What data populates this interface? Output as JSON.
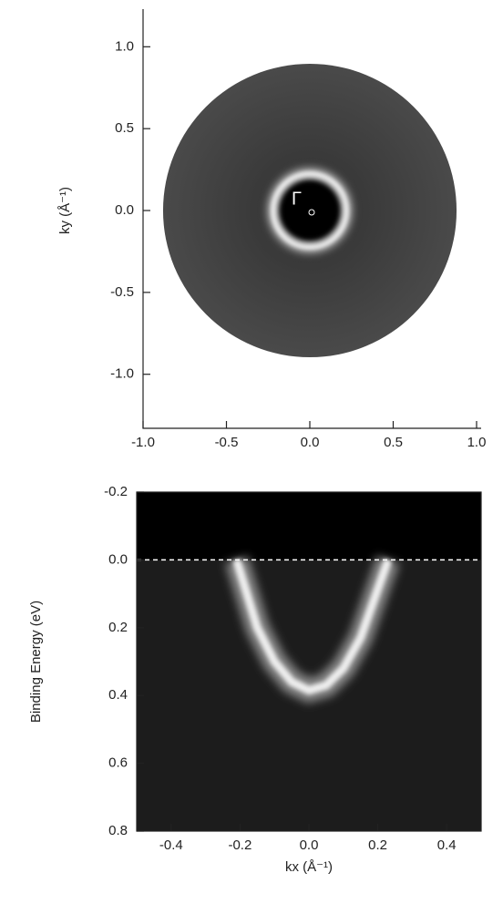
{
  "chart_data": [
    {
      "type": "map",
      "ylabel": "ky (Å⁻¹)",
      "annotation": "Γ",
      "xlim": [
        -1.0,
        1.0
      ],
      "ylim": [
        -1.33,
        1.23
      ],
      "xticks": [
        {
          "value": -1.0,
          "label": "-1.0"
        },
        {
          "value": -0.5,
          "label": "-0.5"
        },
        {
          "value": 0,
          "label": "0.0"
        },
        {
          "value": 0.5,
          "label": "0.5"
        },
        {
          "value": 1.0,
          "label": "1.0"
        }
      ],
      "yticks": [
        {
          "value": 1.0,
          "label": "1.0"
        },
        {
          "value": 0.5,
          "label": "0.5"
        },
        {
          "value": 0,
          "label": "0.0"
        },
        {
          "value": -0.5,
          "label": "-0.5"
        },
        {
          "value": -1.0,
          "label": "-1.0"
        }
      ],
      "map_radius": 0.88,
      "pocket_radius": 0.22
    },
    {
      "type": "dispersion",
      "xlabel": "kx (Å⁻¹)",
      "ylabel": "Binding Energy (eV)",
      "xlim": [
        -0.5,
        0.5
      ],
      "ylim": [
        0.8,
        -0.2
      ],
      "xticks": [
        {
          "value": -0.4,
          "label": "-0.4"
        },
        {
          "value": -0.2,
          "label": "-0.2"
        },
        {
          "value": 0,
          "label": "0.0"
        },
        {
          "value": 0.2,
          "label": "0.2"
        },
        {
          "value": 0.4,
          "label": "0.4"
        }
      ],
      "yticks": [
        {
          "value": -0.2,
          "label": "-0.2"
        },
        {
          "value": 0,
          "label": "0.0"
        },
        {
          "value": 0.2,
          "label": "0.2"
        },
        {
          "value": 0.4,
          "label": "0.4"
        },
        {
          "value": 0.6,
          "label": "0.6"
        },
        {
          "value": 0.8,
          "label": "0.8"
        }
      ],
      "fermi_level": 0,
      "x": [
        -0.21,
        -0.15,
        -0.1,
        -0.05,
        0,
        0.05,
        0.1,
        0.15,
        0.23
      ],
      "values": [
        0,
        0.2,
        0.3,
        0.36,
        0.385,
        0.37,
        0.32,
        0.23,
        0
      ]
    }
  ]
}
